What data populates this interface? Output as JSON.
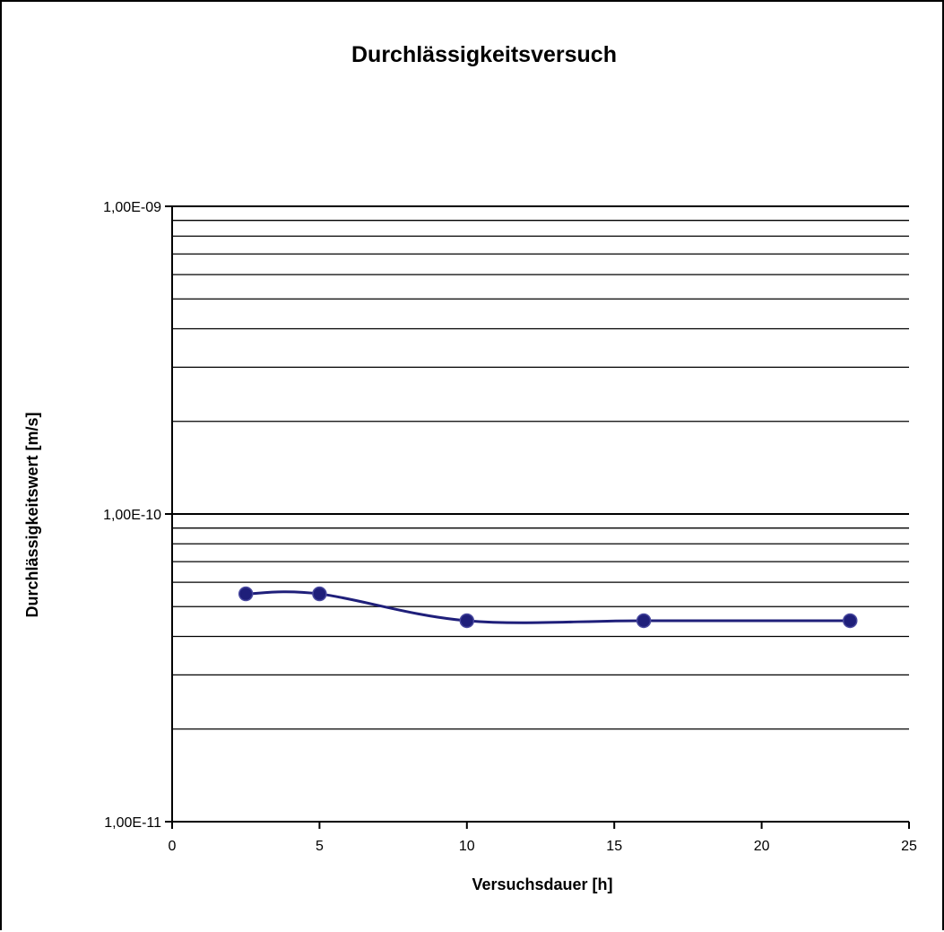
{
  "chart_data": {
    "type": "line",
    "title": "Durchlässigkeitsversuch",
    "xlabel": "Versuchsdauer [h]",
    "ylabel": "Durchlässigkeitswert [m/s]",
    "x_scale": "linear",
    "y_scale": "log",
    "xlim": [
      0,
      25
    ],
    "ylim": [
      1e-11,
      1e-09
    ],
    "x_ticks": [
      0,
      5,
      10,
      15,
      20,
      25
    ],
    "x_tick_labels": [
      "0",
      "5",
      "10",
      "15",
      "20",
      "25"
    ],
    "y_ticks": [
      1e-11,
      1e-10,
      1e-09
    ],
    "y_tick_labels": [
      "1,00E-11",
      "1,00E-10",
      "1,00E-09"
    ],
    "grid": "horizontal major and minor",
    "legend": "none",
    "line_style": "smoothed",
    "series": [
      {
        "color": "#1F1F7A",
        "x": [
          2.5,
          5,
          10,
          16,
          23
        ],
        "y": [
          5.5e-11,
          5.5e-11,
          4.5e-11,
          4.5e-11,
          4.5e-11
        ]
      }
    ]
  }
}
